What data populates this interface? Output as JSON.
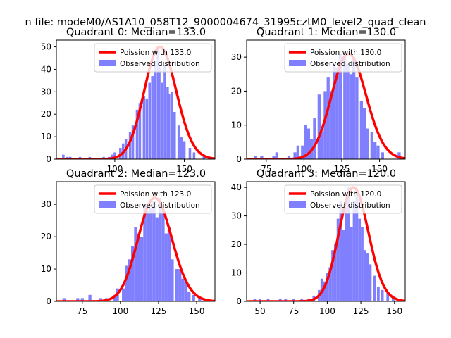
{
  "figure": {
    "title": "n file: modeM0/AS1A10_058T12_9000004674_31995cztM0_level2_quad_clean"
  },
  "chart_data": [
    {
      "type": "bar",
      "title": "Quadrant 0: Median=133.0",
      "median": 133.0,
      "series": [
        {
          "name": "Poission with 133.0",
          "kind": "line",
          "color": "#ff0000"
        },
        {
          "name": "Observed distribution",
          "kind": "histogram",
          "color": "#8080ff"
        }
      ],
      "xlim": [
        58,
        172
      ],
      "ylim": [
        0,
        53
      ],
      "xticks": [
        100,
        150
      ],
      "yticks": [
        0,
        10,
        20,
        30,
        40,
        50
      ],
      "hist": [
        [
          63,
          2
        ],
        [
          66,
          1
        ],
        [
          68,
          1
        ],
        [
          75,
          1
        ],
        [
          82,
          1
        ],
        [
          92,
          1
        ],
        [
          96,
          1
        ],
        [
          98,
          2
        ],
        [
          100,
          3
        ],
        [
          104,
          5
        ],
        [
          106,
          7
        ],
        [
          108,
          9
        ],
        [
          111,
          12
        ],
        [
          113,
          15
        ],
        [
          116,
          22
        ],
        [
          118,
          25
        ],
        [
          121,
          28
        ],
        [
          123,
          27
        ],
        [
          125,
          34
        ],
        [
          127,
          37
        ],
        [
          129,
          44
        ],
        [
          131,
          50
        ],
        [
          132,
          41
        ],
        [
          134,
          34
        ],
        [
          136,
          42
        ],
        [
          138,
          32
        ],
        [
          139,
          29
        ],
        [
          141,
          30
        ],
        [
          143,
          21
        ],
        [
          146,
          15
        ],
        [
          148,
          10
        ],
        [
          150,
          8
        ],
        [
          154,
          5
        ],
        [
          157,
          3
        ],
        [
          164,
          2
        ],
        [
          168,
          1
        ]
      ]
    },
    {
      "type": "bar",
      "title": "Quadrant 1: Median=130.0",
      "median": 130.0,
      "series": [
        {
          "name": "Poission with 130.0",
          "kind": "line",
          "color": "#ff0000"
        },
        {
          "name": "Observed distribution",
          "kind": "histogram",
          "color": "#8080ff"
        }
      ],
      "xlim": [
        62,
        167
      ],
      "ylim": [
        0,
        35
      ],
      "xticks": [
        75,
        100,
        125,
        150
      ],
      "yticks": [
        0,
        10,
        20,
        30
      ],
      "hist": [
        [
          68,
          1
        ],
        [
          72,
          1
        ],
        [
          80,
          1
        ],
        [
          82,
          2
        ],
        [
          90,
          1
        ],
        [
          94,
          2
        ],
        [
          96,
          4
        ],
        [
          99,
          4
        ],
        [
          101,
          10
        ],
        [
          103,
          9
        ],
        [
          105,
          6
        ],
        [
          107,
          12
        ],
        [
          110,
          19
        ],
        [
          112,
          8
        ],
        [
          114,
          20
        ],
        [
          116,
          24
        ],
        [
          118,
          20
        ],
        [
          120,
          28
        ],
        [
          122,
          27
        ],
        [
          124,
          31
        ],
        [
          127,
          30
        ],
        [
          129,
          28
        ],
        [
          131,
          25
        ],
        [
          133,
          30
        ],
        [
          135,
          24
        ],
        [
          138,
          17
        ],
        [
          140,
          15
        ],
        [
          142,
          9
        ],
        [
          145,
          8
        ],
        [
          147,
          5
        ],
        [
          149,
          4
        ],
        [
          152,
          2
        ],
        [
          163,
          2
        ]
      ]
    },
    {
      "type": "bar",
      "title": "Quadrant 2: Median=123.0",
      "median": 123.0,
      "series": [
        {
          "name": "Poission with 123.0",
          "kind": "line",
          "color": "#ff0000"
        },
        {
          "name": "Observed distribution",
          "kind": "histogram",
          "color": "#8080ff"
        }
      ],
      "xlim": [
        58,
        162
      ],
      "ylim": [
        0,
        37
      ],
      "xticks": [
        75,
        100,
        125,
        150
      ],
      "yticks": [
        0,
        10,
        20,
        30
      ],
      "hist": [
        [
          63,
          1
        ],
        [
          72,
          1
        ],
        [
          75,
          1
        ],
        [
          80,
          2
        ],
        [
          87,
          1
        ],
        [
          91,
          1
        ],
        [
          96,
          2
        ],
        [
          98,
          4
        ],
        [
          102,
          4
        ],
        [
          104,
          11
        ],
        [
          106,
          13
        ],
        [
          108,
          17
        ],
        [
          110,
          23
        ],
        [
          112,
          21
        ],
        [
          114,
          20
        ],
        [
          116,
          30
        ],
        [
          118,
          28
        ],
        [
          120,
          29
        ],
        [
          122,
          31
        ],
        [
          124,
          26
        ],
        [
          126,
          32
        ],
        [
          128,
          28
        ],
        [
          130,
          21
        ],
        [
          132,
          23
        ],
        [
          134,
          13
        ],
        [
          137,
          10
        ],
        [
          139,
          10
        ],
        [
          141,
          7
        ],
        [
          143,
          6
        ],
        [
          145,
          3
        ],
        [
          148,
          2
        ],
        [
          152,
          1
        ]
      ]
    },
    {
      "type": "bar",
      "title": "Quadrant 3: Median=120.0",
      "median": 120.0,
      "series": [
        {
          "name": "Poission with 120.0",
          "kind": "line",
          "color": "#ff0000"
        },
        {
          "name": "Observed distribution",
          "kind": "histogram",
          "color": "#8080ff"
        }
      ],
      "xlim": [
        40,
        158
      ],
      "ylim": [
        0,
        42
      ],
      "xticks": [
        50,
        75,
        100,
        125,
        150
      ],
      "yticks": [
        0,
        10,
        20,
        30,
        40
      ],
      "hist": [
        [
          46,
          1
        ],
        [
          50,
          1
        ],
        [
          56,
          1
        ],
        [
          65,
          1
        ],
        [
          69,
          1
        ],
        [
          75,
          1
        ],
        [
          81,
          1
        ],
        [
          86,
          1
        ],
        [
          90,
          2
        ],
        [
          94,
          4
        ],
        [
          96,
          8
        ],
        [
          98,
          7
        ],
        [
          100,
          10
        ],
        [
          102,
          12
        ],
        [
          104,
          18
        ],
        [
          106,
          20
        ],
        [
          108,
          29
        ],
        [
          110,
          35
        ],
        [
          112,
          25
        ],
        [
          114,
          33
        ],
        [
          116,
          40
        ],
        [
          118,
          26
        ],
        [
          120,
          35
        ],
        [
          122,
          38
        ],
        [
          124,
          29
        ],
        [
          126,
          26
        ],
        [
          128,
          18
        ],
        [
          130,
          17
        ],
        [
          132,
          13
        ],
        [
          135,
          9
        ],
        [
          138,
          5
        ],
        [
          141,
          4
        ],
        [
          145,
          3
        ],
        [
          149,
          2
        ]
      ]
    }
  ]
}
